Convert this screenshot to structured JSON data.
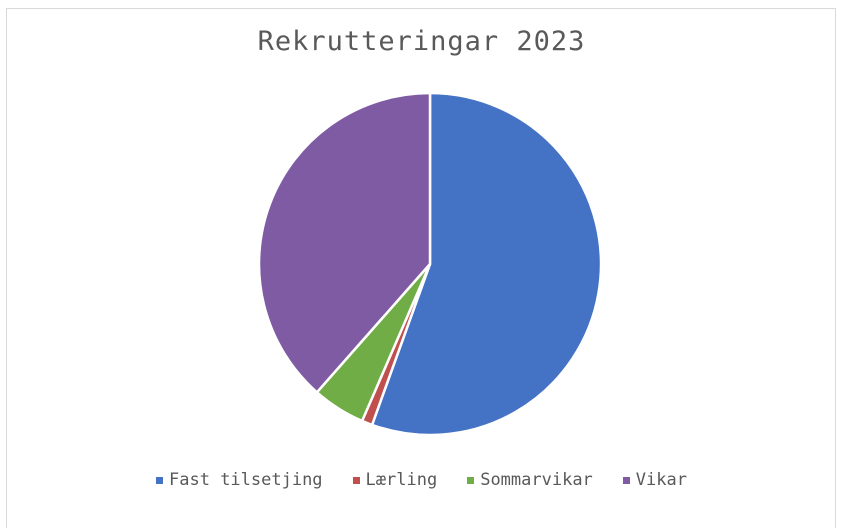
{
  "chart_data": {
    "type": "pie",
    "title": "Rekrutteringar 2023",
    "categories": [
      "Fast tilsetjing",
      "Lærling",
      "Sommarvikar",
      "Vikar"
    ],
    "values": [
      55.5,
      1.0,
      5.0,
      38.5
    ],
    "colors": [
      "#4472c4",
      "#c0504d",
      "#70ad47",
      "#7f5ba4"
    ],
    "legend_position": "bottom"
  }
}
